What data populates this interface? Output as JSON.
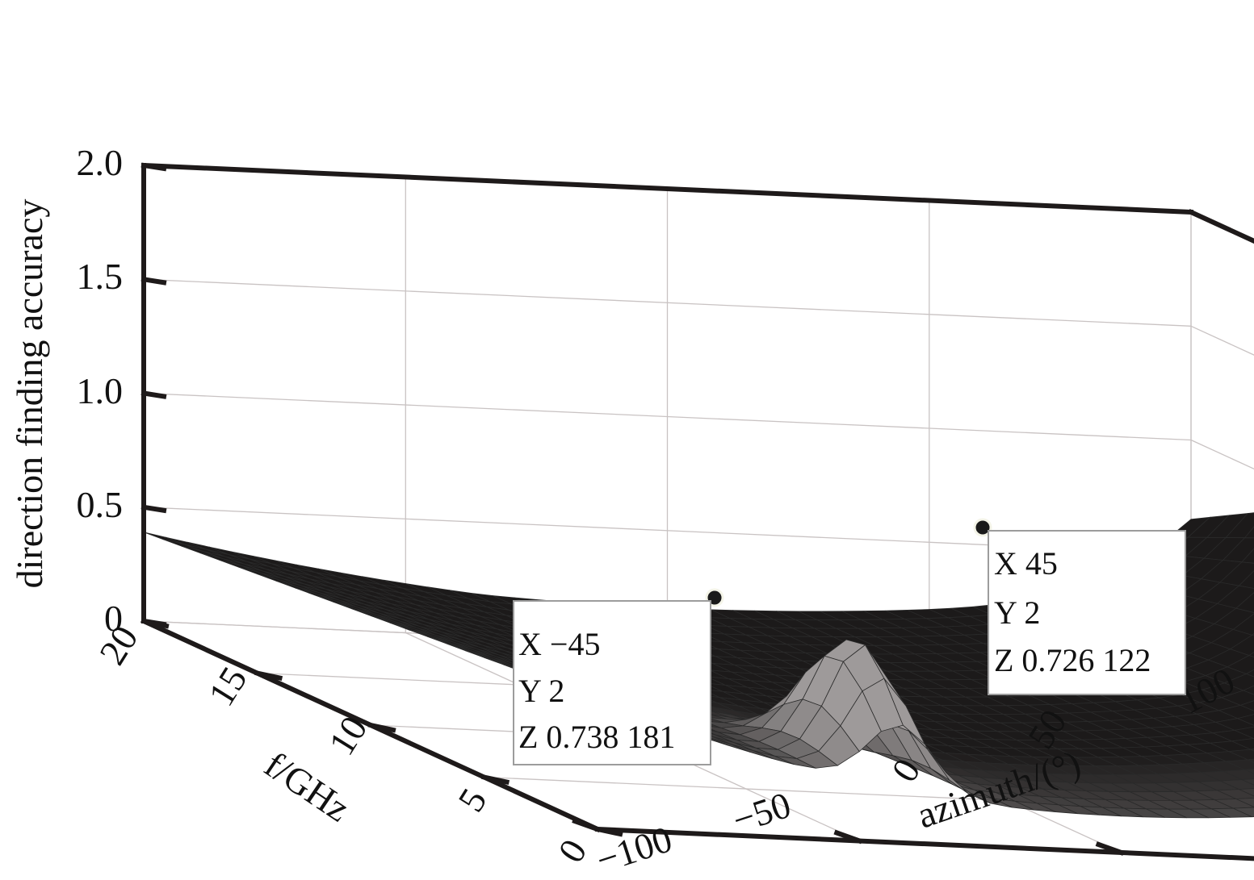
{
  "chart_data": {
    "type": "surface",
    "zlabel": "direction finding accuracy",
    "ylabel": "f/GHz",
    "xlabel": "azimuth/(°)",
    "x_ticks": [
      "−100",
      "−50",
      "0",
      "50",
      "100"
    ],
    "y_ticks": [
      "0",
      "5",
      "10",
      "15",
      "20"
    ],
    "z_ticks": [
      "0",
      "0.5",
      "1.0",
      "1.5",
      "2.0"
    ],
    "xlim": [
      -100,
      100
    ],
    "ylim": [
      0,
      20
    ],
    "zlim": [
      0,
      2.0
    ],
    "grid": true,
    "surface_color": "#1c1a1a",
    "highlight_color": "#9a9696",
    "datatips": [
      {
        "x": -45,
        "y": 2,
        "z": 0.738181,
        "lines": [
          "X −45",
          "Y 2",
          "Z 0.738 181"
        ]
      },
      {
        "x": 45,
        "y": 2,
        "z": 0.726122,
        "lines": [
          "X 45",
          "Y 2",
          "Z 0.726 122"
        ]
      }
    ]
  }
}
